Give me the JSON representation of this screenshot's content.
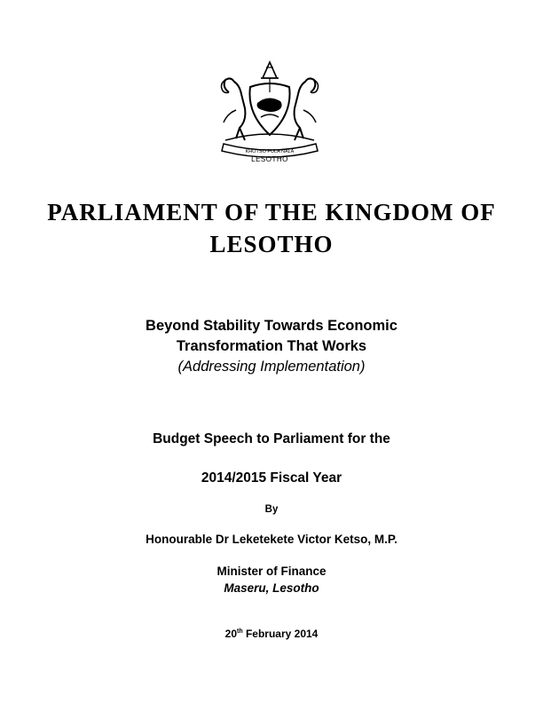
{
  "emblem": {
    "motto": "KHOTSO PULA NALA",
    "label": "LESOTHO"
  },
  "title": {
    "line1": "PARLIAMENT OF THE KINGDOM OF",
    "line2": "LESOTHO"
  },
  "theme": {
    "line1": "Beyond Stability Towards Economic",
    "line2": "Transformation That Works",
    "parenthetical": "(Addressing Implementation)"
  },
  "speech": {
    "line1": "Budget Speech to Parliament for the",
    "line2": "2014/2015 Fiscal Year",
    "by": "By",
    "author": "Honourable Dr Leketekete Victor Ketso, M.P.",
    "role": "Minister of Finance",
    "place": "Maseru, Lesotho",
    "date_day": "20",
    "date_suffix": "th",
    "date_rest": " February 2014"
  }
}
